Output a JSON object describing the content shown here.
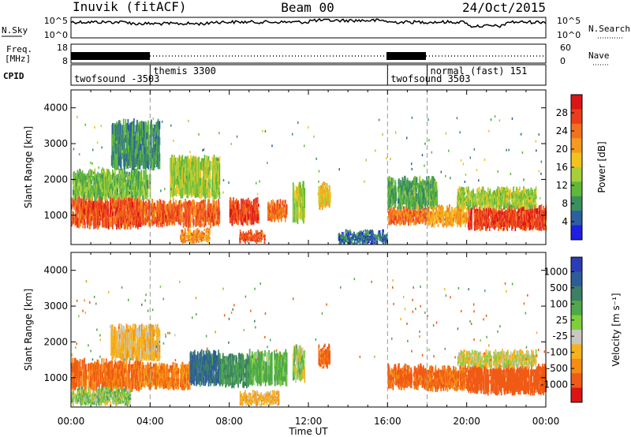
{
  "header": {
    "radar": "Inuvik (fitACF)",
    "beam": "Beam 00",
    "date": "24/Oct/2015"
  },
  "noise_panel": {
    "left_label": "N.Sky",
    "right_label": "N.Search",
    "y_ticks_left": [
      "10^5",
      "10^0"
    ],
    "y_ticks_right": [
      "10^5",
      "10^0"
    ]
  },
  "freq_panel": {
    "left_label_line1": "Freq.",
    "left_label_line2": "[MHz]",
    "right_label": "Nave",
    "y_ticks_left": [
      "18",
      "8"
    ],
    "y_ticks_right": [
      "60",
      "0"
    ]
  },
  "cpid_panel": {
    "label": "CPID",
    "entries": [
      {
        "name": "twofsound -3503",
        "start_hour": 0,
        "end_hour": 4
      },
      {
        "name": "themis 3300",
        "start_hour": 4,
        "end_hour": 16
      },
      {
        "name": "twofsound 3503",
        "start_hour": 16,
        "end_hour": 18
      },
      {
        "name": "normal (fast) 151",
        "start_hour": 18,
        "end_hour": 24
      }
    ]
  },
  "chart_data": [
    {
      "type": "heatmap",
      "title": "",
      "xlabel": "",
      "ylabel": "Slant Range [km]",
      "xlim": [
        0,
        24
      ],
      "ylim": [
        180,
        4500
      ],
      "y_ticks": [
        1000,
        2000,
        3000,
        4000
      ],
      "colorbar": {
        "label": "Power [dB]",
        "ticks": [
          "4",
          "8",
          "12",
          "16",
          "20",
          "24",
          "28"
        ],
        "colors": [
          "#1f1fe0",
          "#2c5fa0",
          "#3b8f5e",
          "#5fb83a",
          "#a8cf3a",
          "#f2c31e",
          "#f59a1e",
          "#f2701e",
          "#eb3c1e",
          "#dc1414"
        ]
      },
      "regions": [
        {
          "x_start": 0.0,
          "x_end": 3.5,
          "range_start": 650,
          "range_end": 1450,
          "value": 26
        },
        {
          "x_start": 3.5,
          "x_end": 7.5,
          "range_start": 700,
          "range_end": 1350,
          "value": 25
        },
        {
          "x_start": 8.0,
          "x_end": 9.5,
          "range_start": 750,
          "range_end": 1400,
          "value": 27
        },
        {
          "x_start": 9.9,
          "x_end": 10.9,
          "range_start": 850,
          "range_end": 1350,
          "value": 24
        },
        {
          "x_start": 8.5,
          "x_end": 9.8,
          "range_start": 250,
          "range_end": 500,
          "value": 26
        },
        {
          "x_start": 5.5,
          "x_end": 7.0,
          "range_start": 250,
          "range_end": 550,
          "value": 22
        },
        {
          "x_start": 11.2,
          "x_end": 11.8,
          "range_start": 800,
          "range_end": 1850,
          "value": 14
        },
        {
          "x_start": 12.5,
          "x_end": 13.1,
          "range_start": 1200,
          "range_end": 1850,
          "value": 18
        },
        {
          "x_start": 0.0,
          "x_end": 4.0,
          "range_start": 1450,
          "range_end": 2200,
          "value": 12
        },
        {
          "x_start": 2.0,
          "x_end": 4.5,
          "range_start": 2300,
          "range_end": 3600,
          "value": 8
        },
        {
          "x_start": 5.0,
          "x_end": 7.5,
          "range_start": 1500,
          "range_end": 2600,
          "value": 14
        },
        {
          "x_start": 16.0,
          "x_end": 18.0,
          "range_start": 750,
          "range_end": 1200,
          "value": 24
        },
        {
          "x_start": 18.0,
          "x_end": 20.0,
          "range_start": 700,
          "range_end": 1200,
          "value": 20
        },
        {
          "x_start": 20.0,
          "x_end": 24.0,
          "range_start": 600,
          "range_end": 1200,
          "value": 27
        },
        {
          "x_start": 19.5,
          "x_end": 23.5,
          "range_start": 1200,
          "range_end": 1700,
          "value": 14
        },
        {
          "x_start": 13.5,
          "x_end": 16.0,
          "range_start": 200,
          "range_end": 500,
          "value": 6
        },
        {
          "x_start": 16.0,
          "x_end": 18.5,
          "range_start": 1200,
          "range_end": 2000,
          "value": 10
        }
      ]
    },
    {
      "type": "heatmap",
      "title": "",
      "xlabel": "Time UT",
      "ylabel": "Slant Range [km]",
      "xlim": [
        0,
        24
      ],
      "ylim": [
        180,
        4500
      ],
      "x_ticks": [
        "00:00",
        "04:00",
        "08:00",
        "12:00",
        "16:00",
        "20:00",
        "00:00"
      ],
      "y_ticks": [
        1000,
        2000,
        3000,
        4000
      ],
      "colorbar": {
        "label": "Velocity [m s⁻¹]",
        "ticks": [
          "1000",
          "500",
          "100",
          "25",
          "-25",
          "-100",
          "-500",
          "-1000"
        ],
        "colors": [
          "#2c3cb4",
          "#2e5c9a",
          "#3a7f66",
          "#4fa84a",
          "#7ed03a",
          "#c8c8c0",
          "#f5b21c",
          "#f58c14",
          "#f05a14",
          "#dc1414"
        ]
      },
      "regions": [
        {
          "x_start": 0.0,
          "x_end": 3.5,
          "range_start": 650,
          "range_end": 1450,
          "value": -120
        },
        {
          "x_start": 3.5,
          "x_end": 6.0,
          "range_start": 700,
          "range_end": 1350,
          "value": -80
        },
        {
          "x_start": 6.0,
          "x_end": 7.5,
          "range_start": 800,
          "range_end": 1700,
          "value": 600
        },
        {
          "x_start": 7.5,
          "x_end": 9.0,
          "range_start": 750,
          "range_end": 1600,
          "value": 300
        },
        {
          "x_start": 9.0,
          "x_end": 10.9,
          "range_start": 800,
          "range_end": 1700,
          "value": 150
        },
        {
          "x_start": 11.2,
          "x_end": 11.8,
          "range_start": 900,
          "range_end": 1850,
          "value": 60
        },
        {
          "x_start": 12.5,
          "x_end": 13.1,
          "range_start": 1300,
          "range_end": 1850,
          "value": -150
        },
        {
          "x_start": 2.0,
          "x_end": 4.5,
          "range_start": 1500,
          "range_end": 2400,
          "value": 0
        },
        {
          "x_start": 0.0,
          "x_end": 3.0,
          "range_start": 250,
          "range_end": 650,
          "value": 80
        },
        {
          "x_start": 8.5,
          "x_end": 10.5,
          "range_start": 250,
          "range_end": 550,
          "value": 0
        },
        {
          "x_start": 16.0,
          "x_end": 18.0,
          "range_start": 700,
          "range_end": 1300,
          "value": -150
        },
        {
          "x_start": 18.0,
          "x_end": 20.0,
          "range_start": 650,
          "range_end": 1250,
          "value": -120
        },
        {
          "x_start": 20.0,
          "x_end": 24.0,
          "range_start": 550,
          "range_end": 1300,
          "value": -300
        },
        {
          "x_start": 19.5,
          "x_end": 23.5,
          "range_start": 1300,
          "range_end": 1700,
          "value": 40
        }
      ]
    }
  ]
}
